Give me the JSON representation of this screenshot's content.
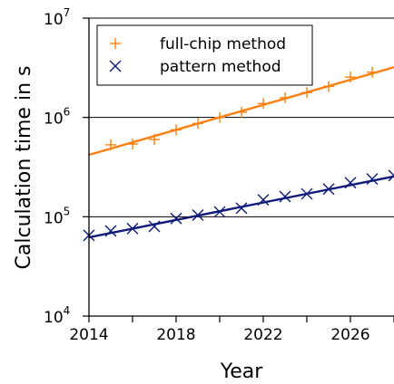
{
  "chart_data": {
    "type": "line",
    "title": "",
    "xlabel": "Year",
    "ylabel": "Calculation time in s",
    "xlim": [
      2014,
      2028
    ],
    "ylim": [
      10000,
      10000000
    ],
    "yscale": "log",
    "x_ticks": [
      "2014",
      "2018",
      "2022",
      "2026"
    ],
    "y_ticks": [
      {
        "base": "10",
        "exp": "4"
      },
      {
        "base": "10",
        "exp": "5"
      },
      {
        "base": "10",
        "exp": "6"
      },
      {
        "base": "10",
        "exp": "7"
      }
    ],
    "grid": "horizontal major lines",
    "legend_position": "top-left",
    "series": [
      {
        "name": "full-chip method",
        "marker": "+",
        "color": "#ff7f0e",
        "x": [
          2015,
          2016,
          2017,
          2018,
          2019,
          2020,
          2021,
          2022,
          2023,
          2024,
          2025,
          2026,
          2027
        ],
        "y": [
          530000,
          540000,
          600000,
          750000,
          870000,
          1000000,
          1130000,
          1380000,
          1580000,
          1780000,
          2050000,
          2550000,
          2850000
        ],
        "fit": {
          "x": [
            2014,
            2028
          ],
          "y": [
            420000,
            3200000
          ]
        }
      },
      {
        "name": "pattern method",
        "marker": "x",
        "color": "#0f1a7a",
        "x": [
          2014,
          2015,
          2016,
          2017,
          2018,
          2019,
          2020,
          2021,
          2022,
          2023,
          2024,
          2025,
          2026,
          2027,
          2028
        ],
        "y": [
          65000,
          72000,
          76000,
          80000,
          96000,
          104000,
          112000,
          122000,
          148000,
          160000,
          170000,
          190000,
          220000,
          240000,
          260000
        ],
        "fit": {
          "x": [
            2014,
            2028
          ],
          "y": [
            62000,
            255000
          ]
        }
      }
    ]
  }
}
